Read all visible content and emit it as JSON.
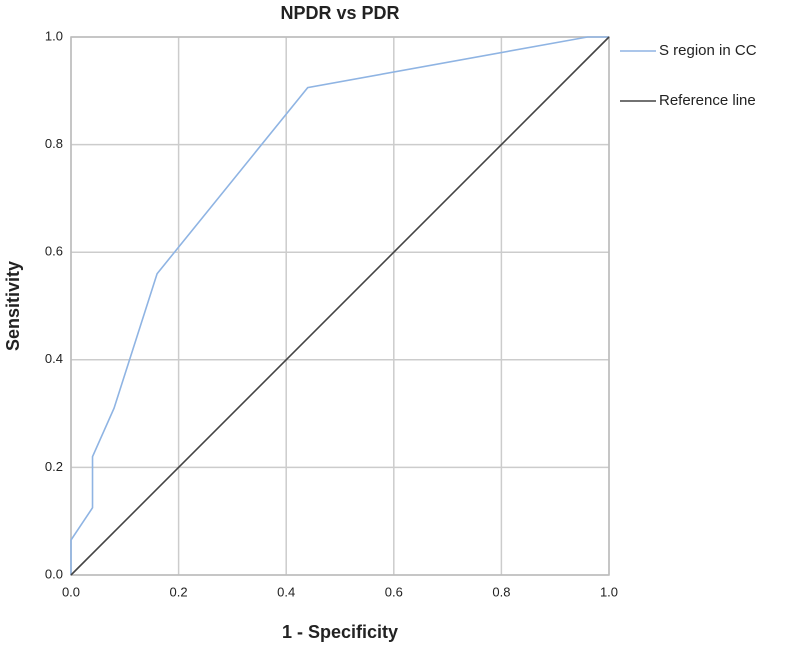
{
  "chart_data": {
    "type": "line",
    "title": "NPDR vs PDR",
    "x_label": "1 - Specificity",
    "y_label": "Sensitivity",
    "series": [
      {
        "name": "S region in CC",
        "color": "#8fb4e3",
        "x": [
          0,
          0,
          0.04,
          0.04,
          0.08,
          0.16,
          0.44,
          0.96,
          1.0
        ],
        "values": [
          0,
          0.065,
          0.125,
          0.22,
          0.31,
          0.56,
          0.906,
          1.0,
          1.0
        ]
      },
      {
        "name": "Reference line",
        "color": "#444444",
        "x": [
          0,
          1.0
        ],
        "values": [
          0,
          1.0
        ]
      }
    ],
    "xlim": [
      0,
      1.0
    ],
    "ylim": [
      0,
      1.0
    ],
    "xticks": [
      {
        "value": 0,
        "label": "0.0"
      },
      0.2,
      0.4,
      0.6,
      0.8,
      {
        "value": 1.0,
        "label": "1.0"
      }
    ],
    "yticks": [
      {
        "value": 0,
        "label": "0.0"
      },
      0.2,
      0.4,
      0.6,
      0.8,
      {
        "value": 1.0,
        "label": "1.0"
      }
    ],
    "grid": true,
    "legend": "right"
  }
}
